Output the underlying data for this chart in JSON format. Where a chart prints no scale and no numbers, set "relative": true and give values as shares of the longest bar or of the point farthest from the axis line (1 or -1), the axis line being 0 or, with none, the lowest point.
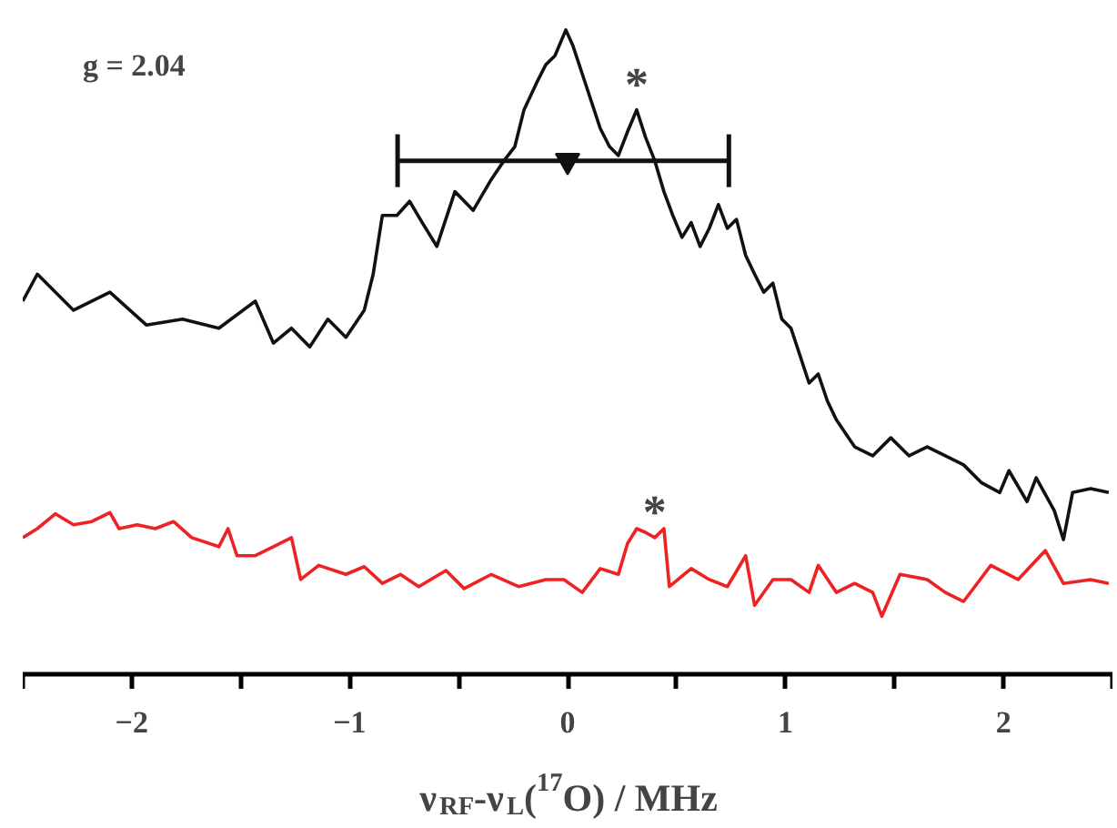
{
  "chart_data": {
    "type": "line",
    "relative": true,
    "xlabel": "ν$_{RF}$-ν$_{L}$($^{17}$O) / MHz",
    "xlim": [
      -2.5,
      2.5
    ],
    "xticks": [
      -2,
      -1,
      0,
      1,
      2
    ],
    "grid": false,
    "line_style": "solid",
    "marker": "none",
    "series": [
      {
        "color": "#111111",
        "x": [
          -2.5,
          -2.433,
          -2.267,
          -2.1,
          -1.933,
          -1.767,
          -1.6,
          -1.433,
          -1.35,
          -1.267,
          -1.183,
          -1.1,
          -1.017,
          -0.933,
          -0.892,
          -0.85,
          -0.783,
          -0.725,
          -0.667,
          -0.6,
          -0.517,
          -0.433,
          -0.35,
          -0.292,
          -0.242,
          -0.2,
          -0.142,
          -0.1,
          -0.058,
          -0.008,
          0.025,
          0.067,
          0.108,
          0.15,
          0.192,
          0.233,
          0.275,
          0.317,
          0.358,
          0.4,
          0.442,
          0.483,
          0.525,
          0.567,
          0.608,
          0.65,
          0.692,
          0.733,
          0.775,
          0.817,
          0.858,
          0.9,
          0.942,
          0.983,
          1.025,
          1.067,
          1.108,
          1.15,
          1.192,
          1.233,
          1.317,
          1.4,
          1.483,
          1.567,
          1.65,
          1.733,
          1.817,
          1.9,
          1.983,
          2.025,
          2.108,
          2.15,
          2.233,
          2.275,
          2.317,
          2.4,
          2.483
        ],
        "values": [
          0.579,
          0.621,
          0.565,
          0.593,
          0.542,
          0.551,
          0.537,
          0.579,
          0.514,
          0.537,
          0.508,
          0.551,
          0.523,
          0.565,
          0.621,
          0.712,
          0.712,
          0.734,
          0.701,
          0.664,
          0.749,
          0.72,
          0.768,
          0.797,
          0.819,
          0.876,
          0.918,
          0.946,
          0.96,
          1.0,
          0.975,
          0.932,
          0.89,
          0.847,
          0.819,
          0.805,
          0.842,
          0.876,
          0.833,
          0.797,
          0.749,
          0.712,
          0.678,
          0.701,
          0.664,
          0.692,
          0.729,
          0.692,
          0.706,
          0.65,
          0.621,
          0.593,
          0.607,
          0.551,
          0.537,
          0.494,
          0.452,
          0.466,
          0.424,
          0.395,
          0.353,
          0.339,
          0.367,
          0.339,
          0.353,
          0.339,
          0.325,
          0.297,
          0.282,
          0.316,
          0.268,
          0.305,
          0.254,
          0.209,
          0.282,
          0.288,
          0.282
        ]
      },
      {
        "color": "#ee2222",
        "x": [
          -2.5,
          -2.433,
          -2.35,
          -2.267,
          -2.183,
          -2.1,
          -2.058,
          -1.975,
          -1.892,
          -1.808,
          -1.725,
          -1.6,
          -1.558,
          -1.517,
          -1.433,
          -1.35,
          -1.267,
          -1.225,
          -1.142,
          -1.017,
          -0.933,
          -0.85,
          -0.767,
          -0.683,
          -0.558,
          -0.475,
          -0.35,
          -0.225,
          -0.1,
          -0.017,
          0.067,
          0.15,
          0.233,
          0.275,
          0.317,
          0.358,
          0.4,
          0.442,
          0.467,
          0.567,
          0.65,
          0.733,
          0.817,
          0.858,
          0.942,
          1.025,
          1.108,
          1.15,
          1.233,
          1.317,
          1.4,
          1.442,
          1.525,
          1.65,
          1.733,
          1.817,
          1.942,
          2.067,
          2.192,
          2.275,
          2.4,
          2.483
        ],
        "values": [
          0.212,
          0.226,
          0.249,
          0.232,
          0.237,
          0.251,
          0.226,
          0.232,
          0.226,
          0.237,
          0.212,
          0.198,
          0.226,
          0.184,
          0.184,
          0.198,
          0.212,
          0.147,
          0.169,
          0.155,
          0.167,
          0.141,
          0.155,
          0.136,
          0.161,
          0.133,
          0.155,
          0.136,
          0.147,
          0.147,
          0.127,
          0.164,
          0.155,
          0.203,
          0.226,
          0.22,
          0.212,
          0.226,
          0.136,
          0.164,
          0.147,
          0.136,
          0.184,
          0.107,
          0.147,
          0.147,
          0.127,
          0.169,
          0.127,
          0.141,
          0.127,
          0.09,
          0.155,
          0.147,
          0.127,
          0.113,
          0.169,
          0.147,
          0.192,
          0.141,
          0.147,
          0.141
        ]
      },
      {
        "type": "scatter",
        "color": "#111111",
        "marker": "triangle",
        "x": [
          0
        ],
        "values": [
          0.797
        ],
        "xerrors": [
          [
            -0.78,
            0.74
          ]
        ]
      }
    ],
    "annotations": [
      "g = 2.04",
      {
        "text": "*",
        "x": 0.317,
        "y": 0.876
      },
      {
        "text": "*",
        "x": 0.4,
        "y": 0.212
      }
    ]
  }
}
